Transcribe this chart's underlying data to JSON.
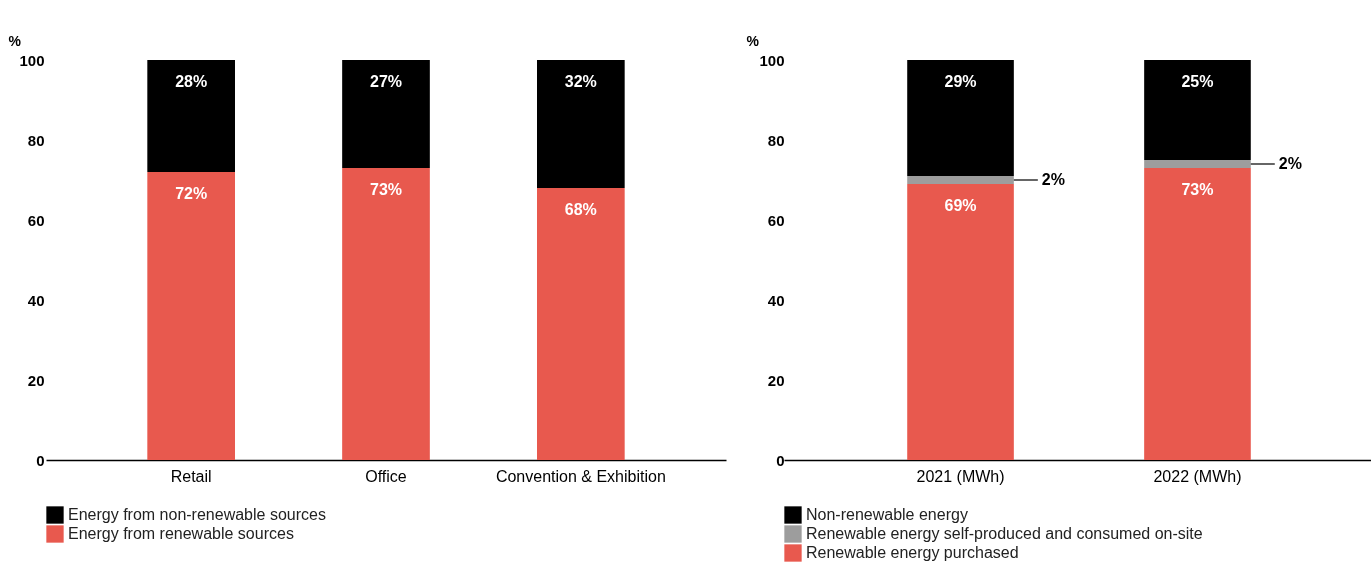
{
  "chart_data": [
    {
      "type": "bar",
      "stacked": true,
      "ylabel": "%",
      "categories": [
        "Retail",
        "Office",
        "Convention & Exhibition"
      ],
      "ylim": [
        0,
        100
      ],
      "yticks": [
        0,
        20,
        40,
        60,
        80,
        100
      ],
      "legend": "bottom",
      "series": [
        {
          "name": "Energy from renewable sources",
          "color": "#e8594e",
          "values": [
            72,
            73,
            68
          ],
          "value_labels": [
            "72%",
            "73%",
            "68%"
          ]
        },
        {
          "name": "Energy from non-renewable sources",
          "color": "#000000",
          "values": [
            28,
            27,
            32
          ],
          "value_labels": [
            "28%",
            "27%",
            "32%"
          ]
        }
      ]
    },
    {
      "type": "bar",
      "stacked": true,
      "ylabel": "%",
      "categories": [
        "2021 (MWh)",
        "2022 (MWh)"
      ],
      "ylim": [
        0,
        100
      ],
      "yticks": [
        0,
        20,
        40,
        60,
        80,
        100
      ],
      "legend": "bottom",
      "series": [
        {
          "name": "Renewable energy purchased",
          "color": "#e8594e",
          "values": [
            69,
            73
          ],
          "value_labels": [
            "69%",
            "73%"
          ]
        },
        {
          "name": "Renewable energy self-produced and consumed on-site",
          "color": "#9d9d9d",
          "values": [
            2,
            2
          ],
          "value_labels": [
            "2%",
            "2%"
          ]
        },
        {
          "name": "Non-renewable energy",
          "color": "#000000",
          "values": [
            29,
            25
          ],
          "value_labels": [
            "29%",
            "25%"
          ]
        }
      ]
    }
  ]
}
